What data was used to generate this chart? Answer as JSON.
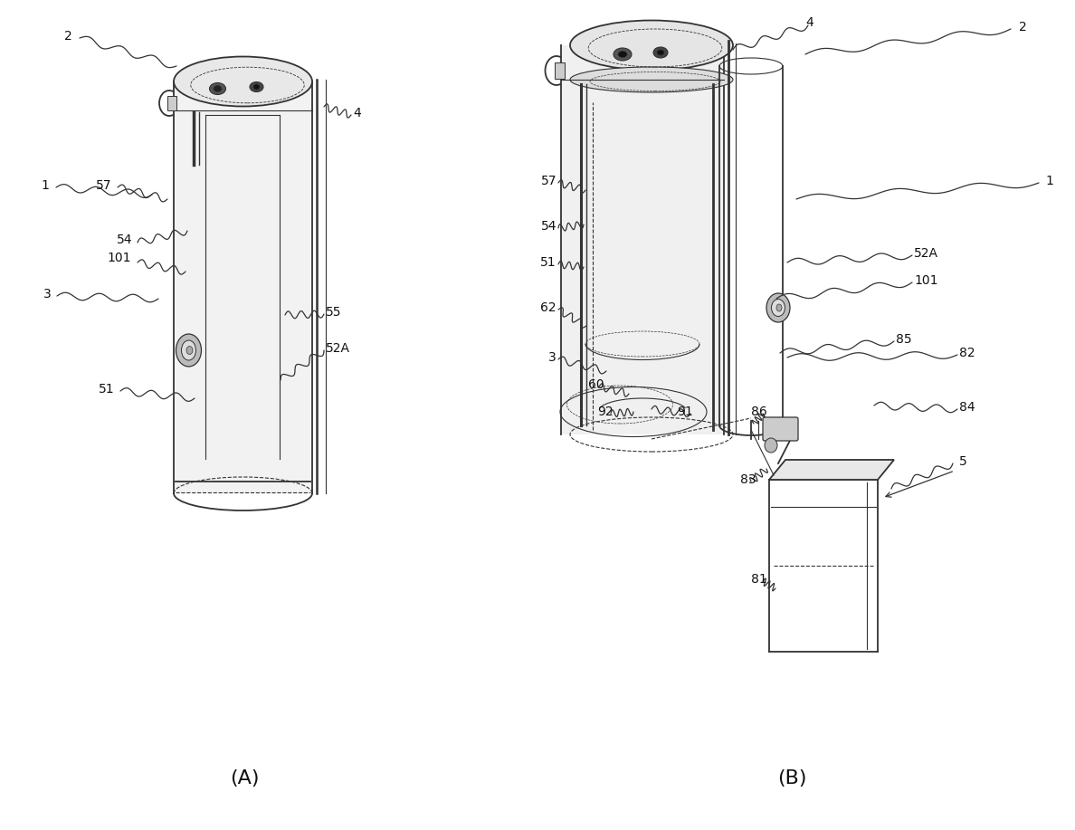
{
  "bg_color": "#ffffff",
  "line_color": "#333333",
  "text_color": "#111111",
  "fig_width": 11.88,
  "fig_height": 9.17,
  "label_A": "(A)",
  "label_B": "(B)",
  "fs_label": 10,
  "fs_caption": 16
}
